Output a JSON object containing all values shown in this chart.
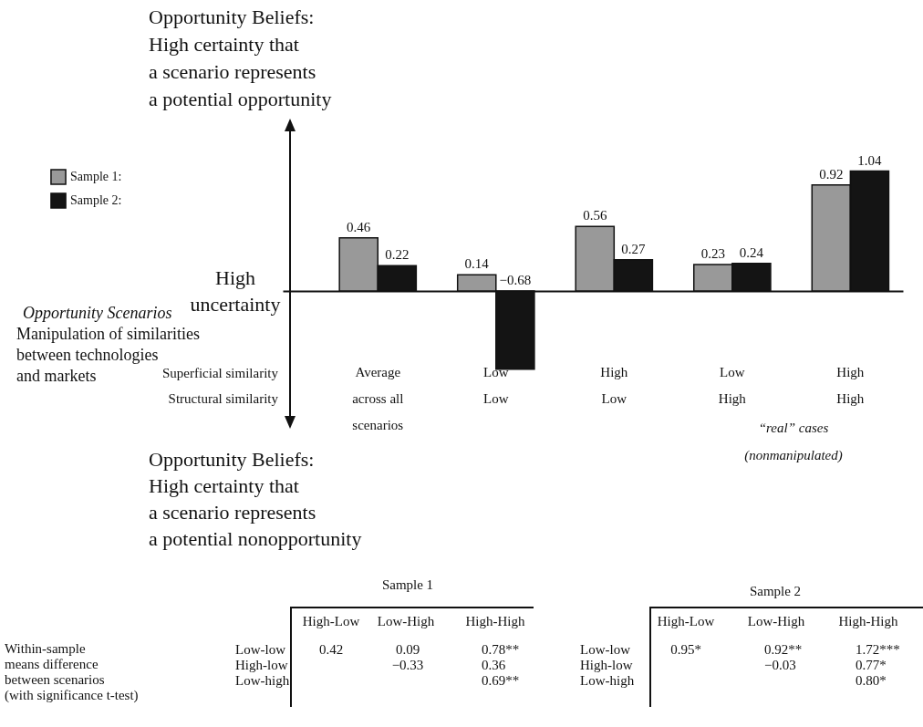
{
  "chart_data": {
    "type": "bar",
    "categories": [
      "Average\nacross all\nscenarios",
      "Low\nLow",
      "High\nLow",
      "Low\nHigh",
      "High\nHigh"
    ],
    "series": [
      {
        "name": "Sample 1:",
        "color": "#999999",
        "values": [
          0.46,
          0.14,
          0.56,
          0.23,
          0.92
        ]
      },
      {
        "name": "Sample 2:",
        "color": "#141414",
        "values": [
          0.22,
          -0.68,
          0.27,
          0.24,
          1.04
        ]
      }
    ],
    "data_labels": true,
    "legend": "top left",
    "annotations": [
      "Opportunity Beliefs:\nHigh certainty that\na scenario represents\na potential opportunity",
      "High\nuncertainty",
      "Opportunity Scenarios",
      "Manipulation of similarities\nbetween technologies\nand markets",
      "Superficial similarity",
      "Structural similarity",
      "“real” cases\n(nonmanipulated)",
      "Opportunity Beliefs:\nHigh certainty that\na scenario represents\na potential nonopportunity",
      "Within-sample\nmeans difference\nbetween scenarios\n(with significance t-test)",
      "Sample 1",
      "High-Low",
      "Low-High",
      "High-High",
      "Low-low",
      "High-low",
      "Low-high",
      "0.42",
      "0.09",
      "0.78**",
      "−0.33",
      "0.36",
      "0.69**",
      "Sample 2",
      "High-Low",
      "Low-High",
      "High-High",
      "Low-low",
      "High-low",
      "Low-high",
      "0.95*",
      "0.92**",
      "1.72***",
      "−0.03",
      "0.77*",
      "0.80*"
    ]
  }
}
